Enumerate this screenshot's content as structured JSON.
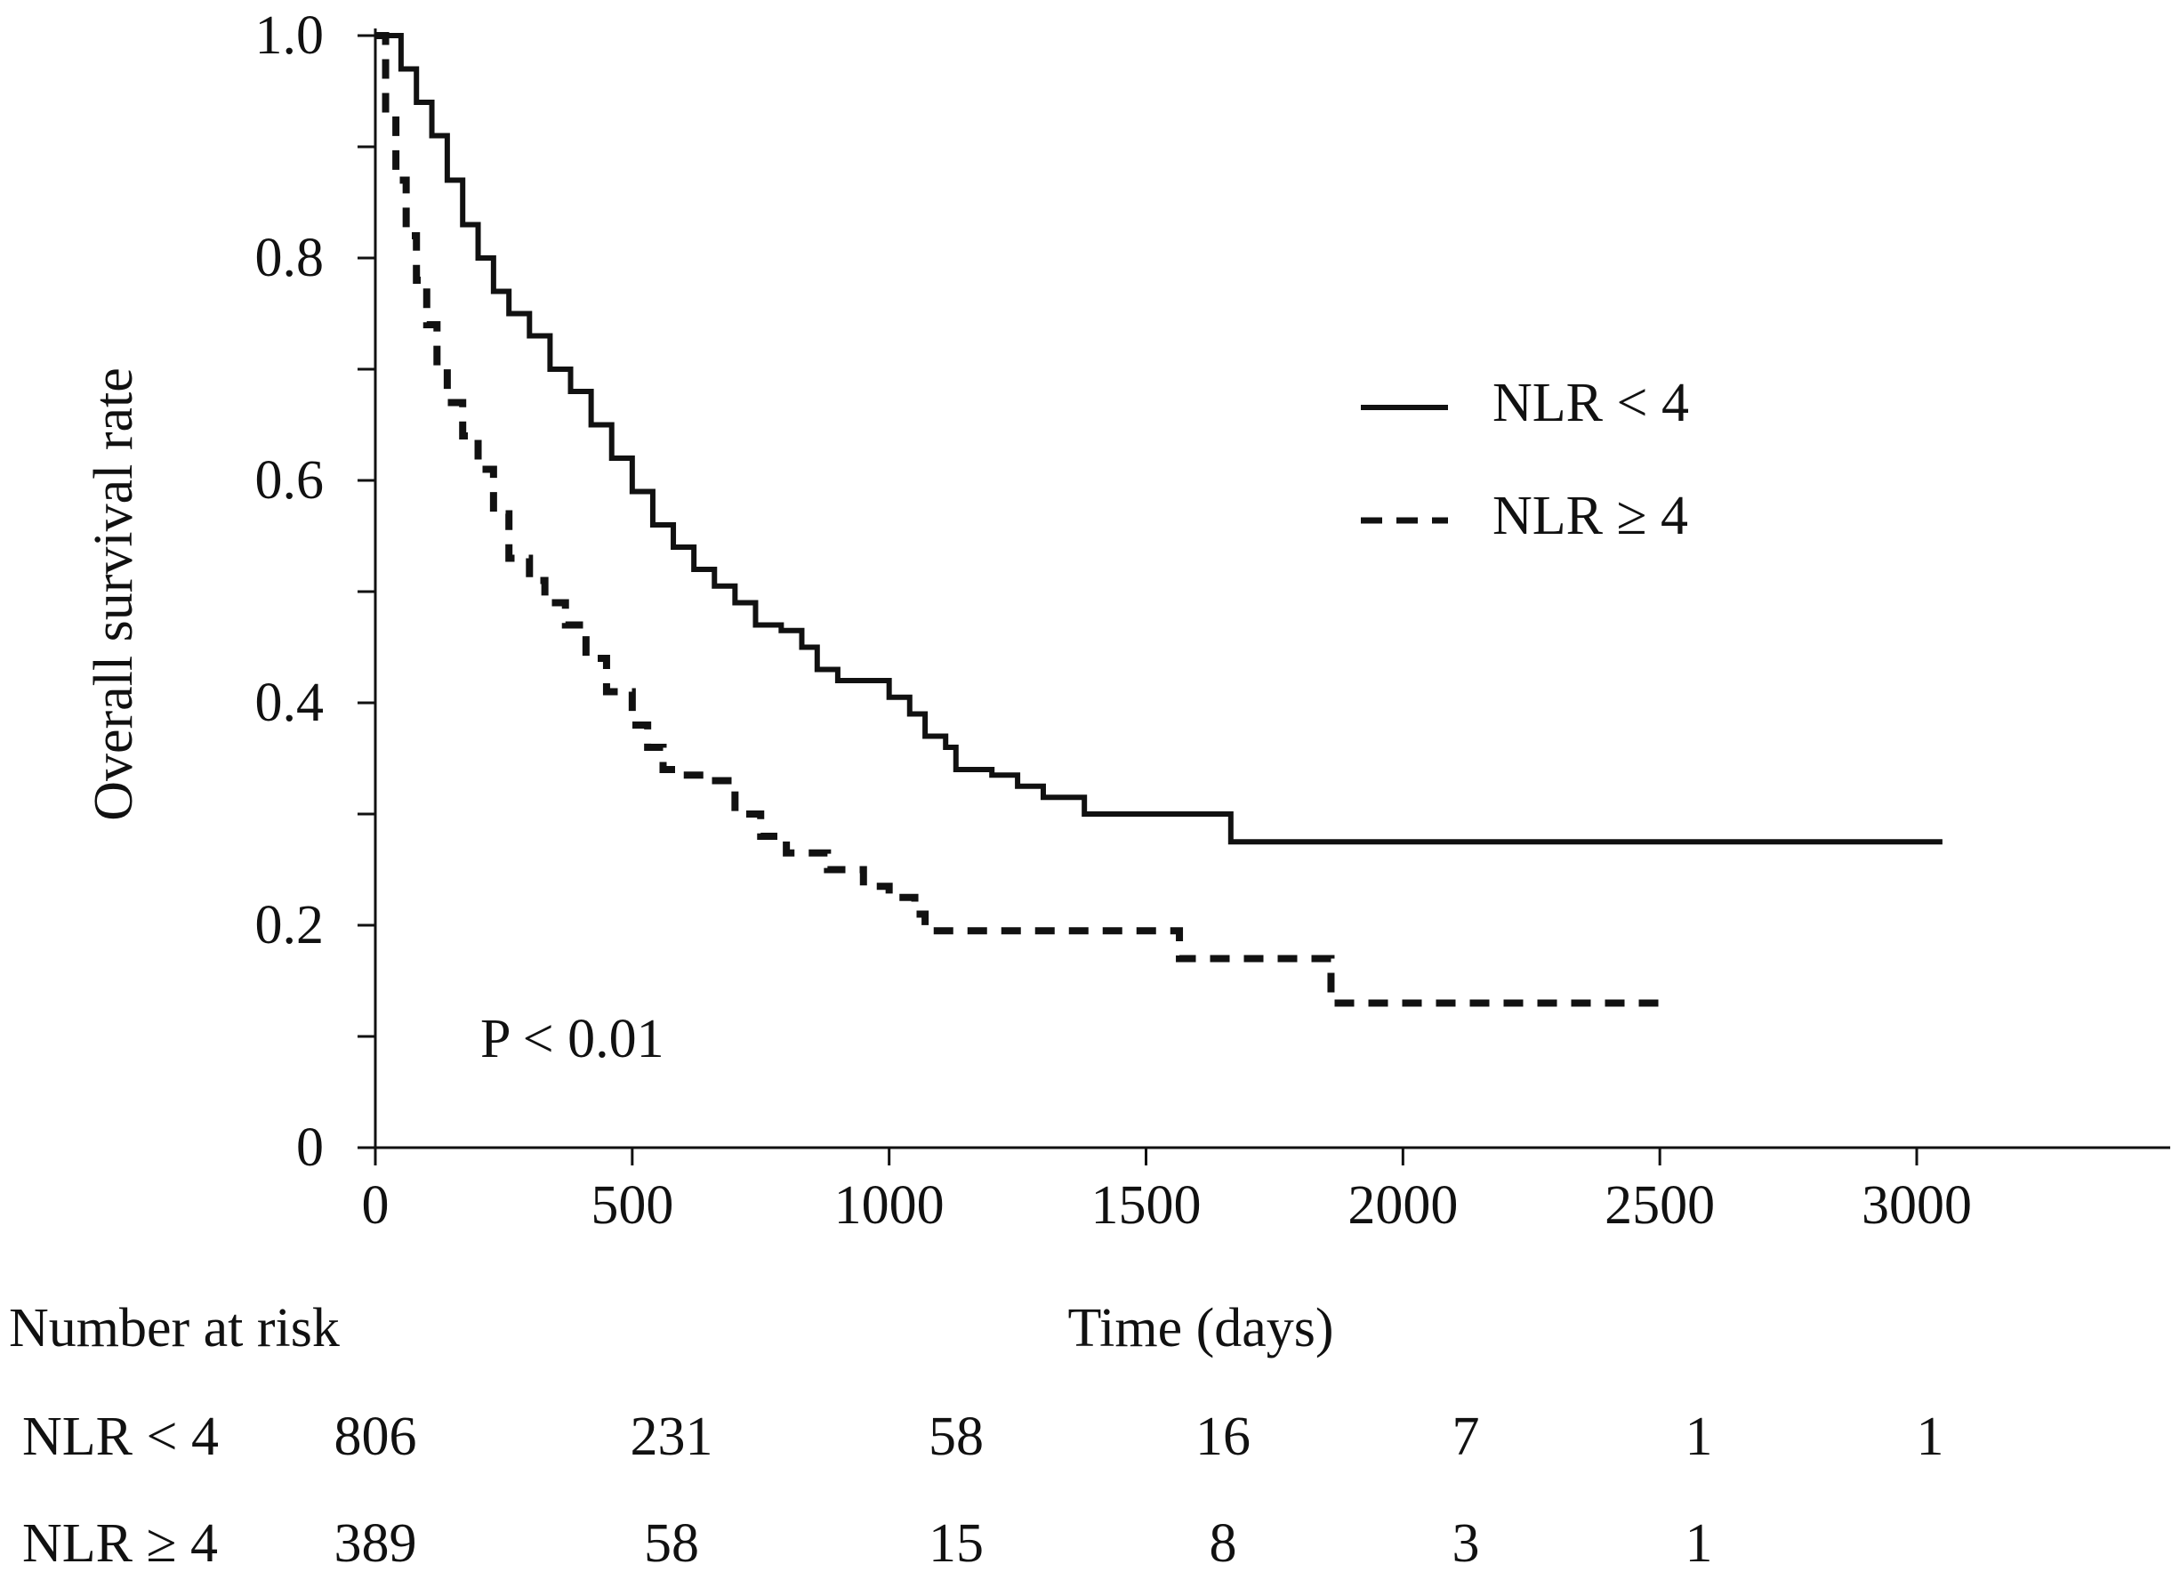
{
  "chart_data": {
    "type": "line",
    "xlabel": "Time (days)",
    "ylabel": "Overall survival rate",
    "xlim": [
      0,
      3500
    ],
    "ylim": [
      0,
      1.0
    ],
    "x_ticks": [
      0,
      500,
      1000,
      1500,
      2000,
      2500,
      3000
    ],
    "x_tick_labels": [
      "0",
      "500",
      "1000",
      "1500",
      "2000",
      "2500",
      "3000"
    ],
    "y_ticks": [
      0,
      0.2,
      0.4,
      0.6,
      0.8,
      1.0
    ],
    "y_tick_labels": [
      "0",
      "0.2",
      "0.4",
      "0.6",
      "0.8",
      "1.0"
    ],
    "grid": false,
    "legend_position": "right",
    "series": [
      {
        "name": "NLR < 4",
        "style": "solid",
        "color": "#111111",
        "points": [
          [
            0,
            1.0
          ],
          [
            25,
            1.0
          ],
          [
            50,
            0.97
          ],
          [
            80,
            0.94
          ],
          [
            110,
            0.91
          ],
          [
            140,
            0.87
          ],
          [
            170,
            0.83
          ],
          [
            200,
            0.8
          ],
          [
            230,
            0.77
          ],
          [
            260,
            0.75
          ],
          [
            300,
            0.73
          ],
          [
            340,
            0.7
          ],
          [
            380,
            0.68
          ],
          [
            420,
            0.65
          ],
          [
            460,
            0.62
          ],
          [
            500,
            0.59
          ],
          [
            540,
            0.56
          ],
          [
            580,
            0.54
          ],
          [
            620,
            0.52
          ],
          [
            660,
            0.505
          ],
          [
            700,
            0.49
          ],
          [
            740,
            0.47
          ],
          [
            790,
            0.465
          ],
          [
            830,
            0.45
          ],
          [
            860,
            0.43
          ],
          [
            900,
            0.42
          ],
          [
            950,
            0.42
          ],
          [
            980,
            0.42
          ],
          [
            1000,
            0.405
          ],
          [
            1040,
            0.39
          ],
          [
            1070,
            0.37
          ],
          [
            1110,
            0.36
          ],
          [
            1130,
            0.34
          ],
          [
            1200,
            0.335
          ],
          [
            1250,
            0.325
          ],
          [
            1300,
            0.315
          ],
          [
            1380,
            0.3
          ],
          [
            1500,
            0.3
          ],
          [
            1660,
            0.3
          ],
          [
            1665,
            0.275
          ],
          [
            2000,
            0.275
          ],
          [
            2500,
            0.275
          ],
          [
            3050,
            0.275
          ]
        ]
      },
      {
        "name": "NLR ≥ 4",
        "style": "dashed",
        "color": "#111111",
        "points": [
          [
            0,
            1.0
          ],
          [
            20,
            0.93
          ],
          [
            40,
            0.87
          ],
          [
            60,
            0.82
          ],
          [
            80,
            0.78
          ],
          [
            100,
            0.74
          ],
          [
            120,
            0.7
          ],
          [
            140,
            0.67
          ],
          [
            170,
            0.64
          ],
          [
            200,
            0.61
          ],
          [
            230,
            0.57
          ],
          [
            260,
            0.53
          ],
          [
            300,
            0.51
          ],
          [
            330,
            0.49
          ],
          [
            370,
            0.47
          ],
          [
            410,
            0.44
          ],
          [
            450,
            0.41
          ],
          [
            500,
            0.38
          ],
          [
            530,
            0.36
          ],
          [
            560,
            0.34
          ],
          [
            600,
            0.335
          ],
          [
            650,
            0.33
          ],
          [
            700,
            0.3
          ],
          [
            750,
            0.28
          ],
          [
            800,
            0.265
          ],
          [
            880,
            0.25
          ],
          [
            950,
            0.235
          ],
          [
            1000,
            0.225
          ],
          [
            1050,
            0.21
          ],
          [
            1070,
            0.195
          ],
          [
            1300,
            0.195
          ],
          [
            1560,
            0.195
          ],
          [
            1565,
            0.17
          ],
          [
            1850,
            0.17
          ],
          [
            1860,
            0.13
          ],
          [
            2100,
            0.13
          ],
          [
            2500,
            0.13
          ]
        ]
      }
    ],
    "annotations": [
      "P < 0.01"
    ],
    "risk_table": {
      "title": "Number at risk",
      "rows": [
        {
          "label": "NLR < 4",
          "values": [
            "806",
            "231",
            "58",
            "16",
            "7",
            "1",
            "1"
          ]
        },
        {
          "label": "NLR ≥ 4",
          "values": [
            "389",
            "58",
            "15",
            "8",
            "3",
            "1",
            ""
          ]
        }
      ]
    }
  }
}
